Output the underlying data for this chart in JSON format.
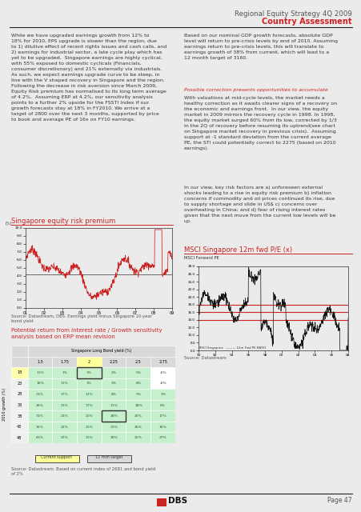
{
  "title_line1": "Regional Equity Strategy 4Q 2009",
  "title_line2": "Country Assessment",
  "bg_color": "#ebebeb",
  "red_color": "#cc2222",
  "text_color": "#333333",
  "gray_color": "#666666",
  "page_text": "Page 47",
  "chart1_title": "Singapore equity risk premium",
  "chart2_title": "MSCI Singapore 12m fwd P/E (x)",
  "chart2_subtitle": "MSCI Forward PE",
  "table_title": "Potential return from Interest rate / Growth sensitivity\nanalysis based on ERP mean revision",
  "table_col_header": "Singapore Long Bond yield (%)",
  "table_col_vals": [
    "1.5",
    "1.75",
    "2",
    "2.25",
    "2.5",
    "2.75"
  ],
  "table_row_header": "2010 growth (%)",
  "table_row_vals": [
    "18",
    "23",
    "28",
    "33",
    "38",
    "43",
    "48"
  ],
  "table_data": [
    [
      "11%",
      "1%",
      "3%",
      "2%",
      "5%",
      "-6%"
    ],
    [
      "16%",
      "11%",
      "1%",
      "3%",
      "8%",
      "-6%"
    ],
    [
      "21%",
      "17%",
      "11%",
      "8%",
      "5%",
      "1%"
    ],
    [
      "26%",
      "21%",
      "17%",
      "11%",
      "18%",
      "6%"
    ],
    [
      "31%",
      "21%",
      "21%",
      "28%",
      "20%",
      "17%"
    ],
    [
      "36%",
      "22%",
      "21%",
      "21%",
      "26%",
      "16%"
    ],
    [
      "41%",
      "37%",
      "31%",
      "28%",
      "25%",
      "27%"
    ]
  ],
  "current_support_col": 2,
  "current_target_col": 4,
  "highlight_row": 0,
  "highlight_current_cell": [
    0,
    2
  ],
  "highlight_target_cell": [
    4,
    4
  ],
  "source_text1": "Source: Datastream, DBS. Earnings yield minus Singapore 10-year\nbond yield",
  "source_text2": "Source: Datastream",
  "source_text3": "Source: Datastream. Based on current index of 2681 and bond yield\nof 2%"
}
